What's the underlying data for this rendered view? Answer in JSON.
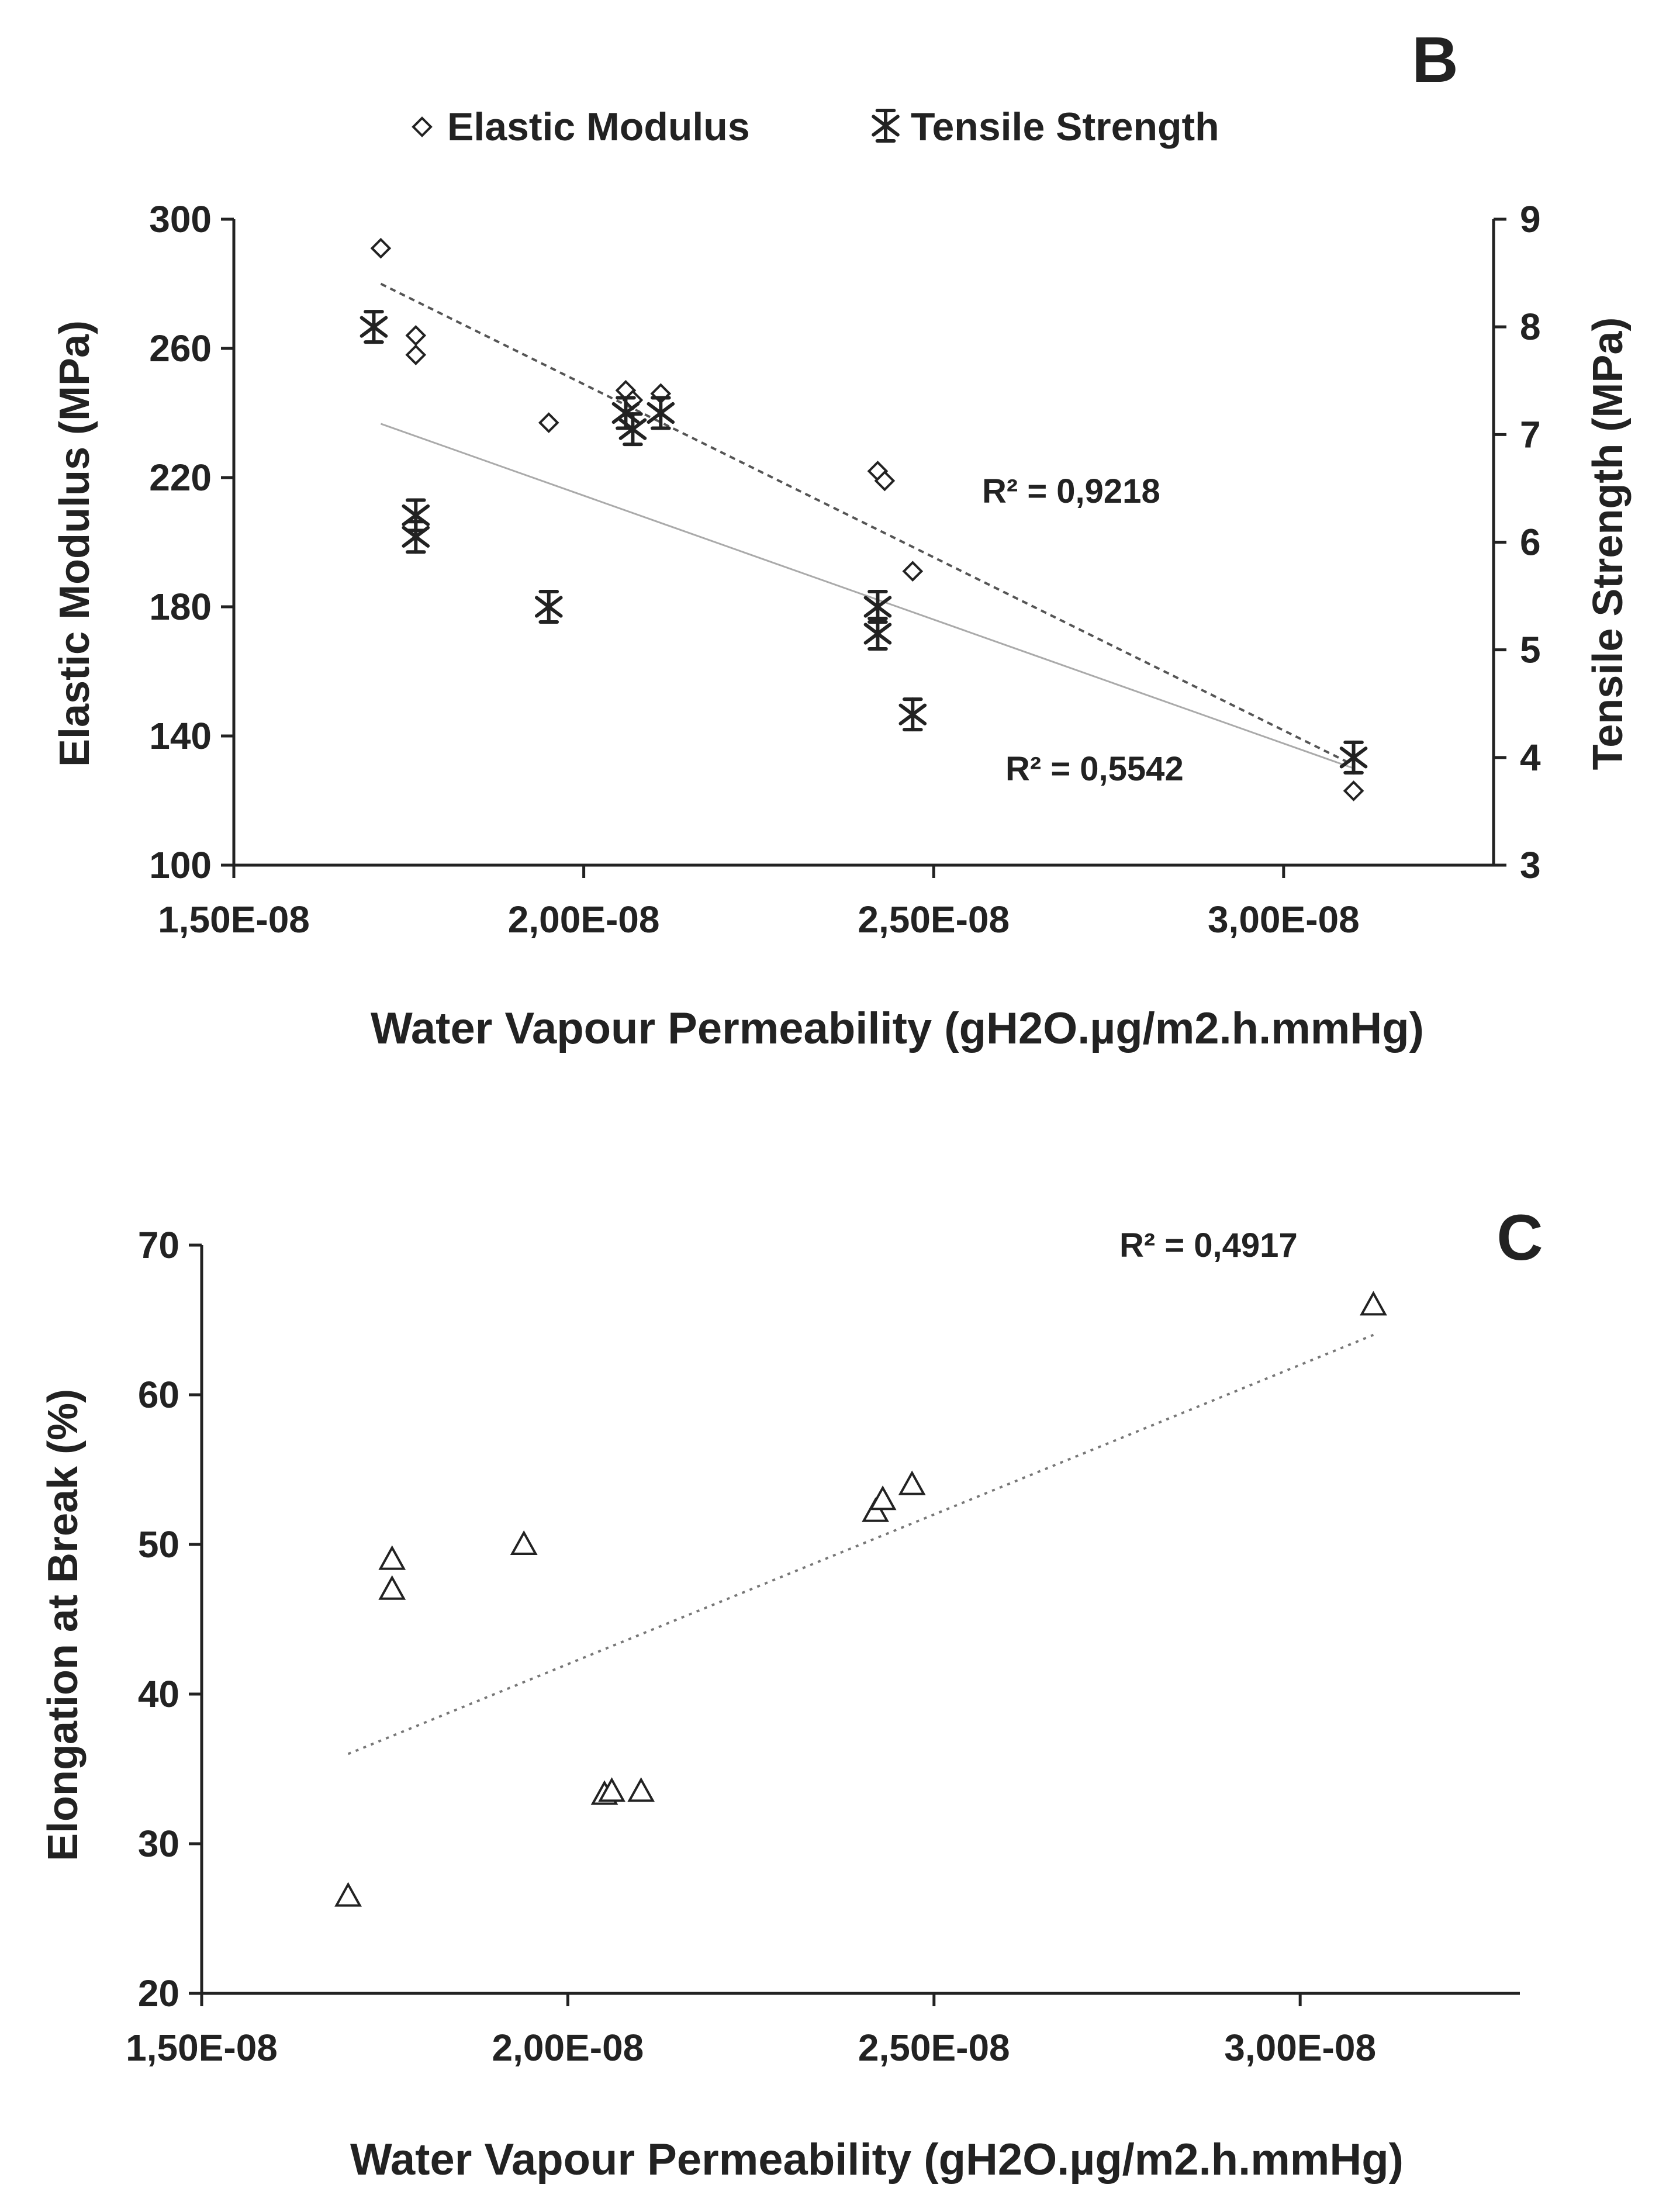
{
  "chart_data": [
    {
      "panel_label": "B",
      "type": "scatter",
      "legend": [
        {
          "name": "Elastic Modulus",
          "marker": "diamond"
        },
        {
          "name": "Tensile Strength",
          "marker": "asterisk"
        }
      ],
      "legend_position": "top-center",
      "xlabel": "Water Vapour Permeability (gH2O.µg/m2.h.mmHg)",
      "ylabel_left": "Elastic Modulus (MPa)",
      "ylabel_right": "Tensile Strength (MPa)",
      "xlim": [
        1.5e-08,
        3.3e-08
      ],
      "ylim_left": [
        100,
        300
      ],
      "ylim_right": [
        3,
        9
      ],
      "x_ticks": [
        {
          "value": 1.5e-08,
          "label": "1,50E-08"
        },
        {
          "value": 2e-08,
          "label": "2,00E-08"
        },
        {
          "value": 2.5e-08,
          "label": "2,50E-08"
        },
        {
          "value": 3e-08,
          "label": "3,00E-08"
        }
      ],
      "y_ticks_left": [
        "100",
        "140",
        "180",
        "220",
        "260",
        "300"
      ],
      "y_ticks_right": [
        "3",
        "4",
        "5",
        "6",
        "7",
        "8",
        "9"
      ],
      "series": [
        {
          "name": "Elastic Modulus",
          "axis": "left",
          "marker": "diamond",
          "points": [
            [
              1.71e-08,
              291
            ],
            [
              1.76e-08,
              264
            ],
            [
              1.76e-08,
              258
            ],
            [
              1.95e-08,
              237
            ],
            [
              2.06e-08,
              247
            ],
            [
              2.07e-08,
              244
            ],
            [
              2.11e-08,
              246
            ],
            [
              2.42e-08,
              222
            ],
            [
              2.43e-08,
              219
            ],
            [
              2.47e-08,
              191
            ],
            [
              3.1e-08,
              123
            ]
          ],
          "trendline": {
            "x": [
              1.71e-08,
              3.1e-08
            ],
            "y": [
              280,
              131
            ],
            "style": "dashed",
            "r2_label": "R² = 0,9218"
          }
        },
        {
          "name": "Tensile Strength",
          "axis": "right",
          "marker": "asterisk",
          "points": [
            [
              1.7e-08,
              8.0
            ],
            [
              1.76e-08,
              6.25
            ],
            [
              1.76e-08,
              6.05
            ],
            [
              1.95e-08,
              5.4
            ],
            [
              2.06e-08,
              7.2
            ],
            [
              2.07e-08,
              7.05
            ],
            [
              2.11e-08,
              7.2
            ],
            [
              2.42e-08,
              5.4
            ],
            [
              2.42e-08,
              5.15
            ],
            [
              2.47e-08,
              4.4
            ],
            [
              3.1e-08,
              4.0
            ]
          ],
          "trendline": {
            "x": [
              1.71e-08,
              3.1e-08
            ],
            "y": [
              7.1,
              3.9
            ],
            "style": "solid-light",
            "r2_label": "R² = 0,5542"
          }
        }
      ]
    },
    {
      "panel_label": "C",
      "type": "scatter",
      "xlabel": "Water Vapour Permeability (gH2O.µg/m2.h.mmHg)",
      "ylabel": "Elongation at Break (%)",
      "xlim": [
        1.5e-08,
        3.3e-08
      ],
      "ylim": [
        20,
        70
      ],
      "x_ticks": [
        {
          "value": 1.5e-08,
          "label": "1,50E-08"
        },
        {
          "value": 2e-08,
          "label": "2,00E-08"
        },
        {
          "value": 2.5e-08,
          "label": "2,50E-08"
        },
        {
          "value": 3e-08,
          "label": "3,00E-08"
        }
      ],
      "y_ticks": [
        "20",
        "30",
        "40",
        "50",
        "60",
        "70"
      ],
      "series": [
        {
          "name": "Elongation at Break",
          "marker": "triangle",
          "points": [
            [
              1.7e-08,
              26.5
            ],
            [
              1.76e-08,
              49
            ],
            [
              1.76e-08,
              47
            ],
            [
              1.94e-08,
              50
            ],
            [
              2.05e-08,
              33.3
            ],
            [
              2.06e-08,
              33.5
            ],
            [
              2.1e-08,
              33.5
            ],
            [
              2.42e-08,
              52.2
            ],
            [
              2.43e-08,
              53
            ],
            [
              2.47e-08,
              54
            ],
            [
              3.1e-08,
              66
            ]
          ],
          "trendline": {
            "x": [
              1.7e-08,
              3.1e-08
            ],
            "y": [
              36,
              64
            ],
            "style": "dotted",
            "r2_label": "R² = 0,4917"
          }
        }
      ]
    }
  ]
}
